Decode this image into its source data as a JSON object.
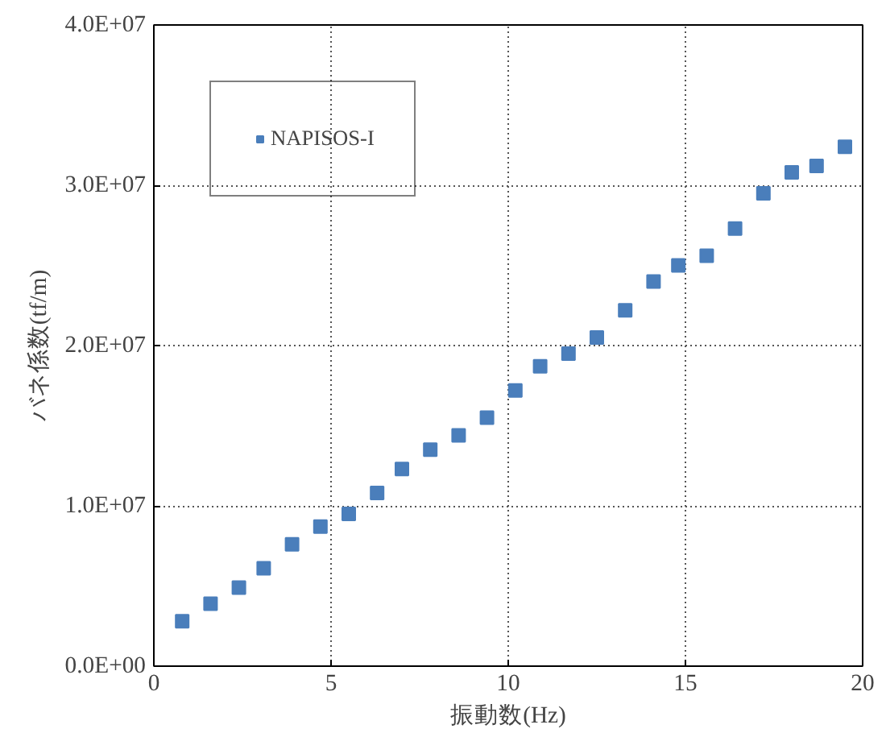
{
  "chart_data": {
    "type": "scatter",
    "xlabel": "振動数(Hz)",
    "ylabel": "バネ係数(tf/m)",
    "x": [
      0.8,
      1.6,
      2.4,
      3.1,
      3.9,
      4.7,
      5.5,
      6.3,
      7.0,
      7.8,
      8.6,
      9.4,
      10.2,
      10.9,
      11.7,
      12.5,
      13.3,
      14.1,
      14.8,
      15.6,
      16.4,
      17.2,
      18.0,
      18.7,
      19.5
    ],
    "series": [
      {
        "name": "NAPISOS-I",
        "color": "#4a7ebb",
        "values": [
          2800000,
          3900000,
          4900000,
          6100000,
          7600000,
          8700000,
          9500000,
          10800000,
          12300000,
          13500000,
          14400000,
          15500000,
          17200000,
          18700000,
          19500000,
          20500000,
          22200000,
          24000000,
          25000000,
          25600000,
          27300000,
          29500000,
          30800000,
          31200000,
          32400000
        ]
      }
    ],
    "xlim": [
      0,
      20
    ],
    "xticks": [
      0,
      5,
      10,
      15,
      20
    ],
    "ylim": [
      0,
      40000000
    ],
    "yticks": [
      {
        "value": 0,
        "label": "0.0E+00"
      },
      {
        "value": 10000000,
        "label": "1.0E+07"
      },
      {
        "value": 20000000,
        "label": "2.0E+07"
      },
      {
        "value": 30000000,
        "label": "3.0E+07"
      },
      {
        "value": 40000000,
        "label": "4.0E+07"
      }
    ],
    "grid": true,
    "legend": "top left",
    "marker": "square"
  }
}
